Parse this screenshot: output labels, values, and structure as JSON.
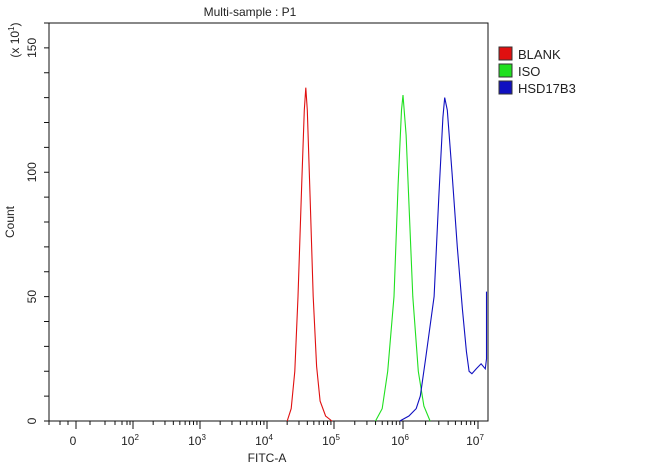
{
  "chart_data": {
    "type": "line",
    "title": "Multi-sample : P1",
    "xlabel": "FITC-A",
    "ylabel": "Count",
    "y_multiplier_label": "(x 10",
    "y_multiplier_exp": "1",
    "x_scale": "biexponential (log)",
    "xlim": [
      0,
      13500000
    ],
    "ylim": [
      0,
      160
    ],
    "x_ticks": [
      {
        "value": 0,
        "base": "0",
        "exp": ""
      },
      {
        "value": 100,
        "base": "10",
        "exp": "2"
      },
      {
        "value": 1000,
        "base": "10",
        "exp": "3"
      },
      {
        "value": 10000,
        "base": "10",
        "exp": "4"
      },
      {
        "value": 100000,
        "base": "10",
        "exp": "5"
      },
      {
        "value": 1000000,
        "base": "10",
        "exp": "6"
      },
      {
        "value": 10000000,
        "base": "10",
        "exp": "7"
      }
    ],
    "y_ticks": [
      0,
      50,
      100,
      150
    ],
    "grid": false,
    "legend_position": "right",
    "series": [
      {
        "name": "BLANK",
        "color": "#e01010",
        "points": [
          [
            20000,
            0
          ],
          [
            23000,
            5
          ],
          [
            26000,
            20
          ],
          [
            29000,
            50
          ],
          [
            33000,
            95
          ],
          [
            36000,
            125
          ],
          [
            38000,
            134
          ],
          [
            40000,
            125
          ],
          [
            44000,
            90
          ],
          [
            49000,
            50
          ],
          [
            55000,
            22
          ],
          [
            62000,
            8
          ],
          [
            75000,
            2
          ],
          [
            93000,
            0
          ]
        ]
      },
      {
        "name": "ISO",
        "color": "#20e020",
        "points": [
          [
            400000,
            0
          ],
          [
            500000,
            5
          ],
          [
            600000,
            20
          ],
          [
            740000,
            50
          ],
          [
            850000,
            95
          ],
          [
            950000,
            125
          ],
          [
            1000000,
            131
          ],
          [
            1100000,
            115
          ],
          [
            1350000,
            50
          ],
          [
            1600000,
            20
          ],
          [
            1900000,
            6
          ],
          [
            2300000,
            0
          ]
        ]
      },
      {
        "name": "HSD17B3",
        "color": "#1010c0",
        "points": [
          [
            900000,
            0
          ],
          [
            1200000,
            2
          ],
          [
            1500000,
            5
          ],
          [
            1700000,
            10
          ],
          [
            2000000,
            25
          ],
          [
            2600000,
            50
          ],
          [
            3000000,
            90
          ],
          [
            3400000,
            122
          ],
          [
            3600000,
            130
          ],
          [
            3900000,
            125
          ],
          [
            4500000,
            100
          ],
          [
            5300000,
            70
          ],
          [
            6200000,
            45
          ],
          [
            7000000,
            28
          ],
          [
            7600000,
            20
          ],
          [
            8300000,
            19
          ],
          [
            9500000,
            21
          ],
          [
            11000000,
            23
          ],
          [
            12500000,
            21
          ],
          [
            13000000,
            25
          ],
          [
            13000000,
            52
          ]
        ]
      }
    ]
  }
}
